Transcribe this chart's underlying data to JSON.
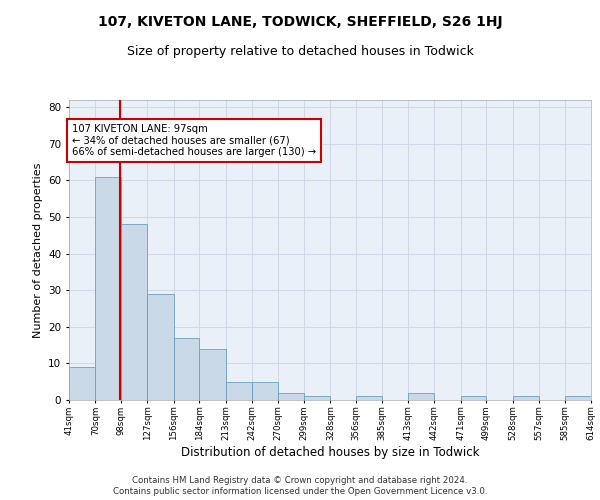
{
  "title": "107, KIVETON LANE, TODWICK, SHEFFIELD, S26 1HJ",
  "subtitle": "Size of property relative to detached houses in Todwick",
  "xlabel": "Distribution of detached houses by size in Todwick",
  "ylabel": "Number of detached properties",
  "bar_values": [
    9,
    61,
    48,
    29,
    17,
    14,
    5,
    5,
    2,
    1,
    0,
    1,
    0,
    2,
    0,
    1,
    0,
    1,
    0,
    1
  ],
  "bin_edges": [
    41,
    70,
    98,
    127,
    156,
    184,
    213,
    242,
    270,
    299,
    328,
    356,
    385,
    413,
    442,
    471,
    499,
    528,
    557,
    585,
    614
  ],
  "x_tick_labels": [
    "41sqm",
    "70sqm",
    "98sqm",
    "127sqm",
    "156sqm",
    "184sqm",
    "213sqm",
    "242sqm",
    "270sqm",
    "299sqm",
    "328sqm",
    "356sqm",
    "385sqm",
    "413sqm",
    "442sqm",
    "471sqm",
    "499sqm",
    "528sqm",
    "557sqm",
    "585sqm",
    "614sqm"
  ],
  "bar_color": "#c9d9e8",
  "bar_edge_color": "#6a9fc0",
  "property_line_x": 97,
  "property_line_color": "#cc0000",
  "annotation_text": "107 KIVETON LANE: 97sqm\n← 34% of detached houses are smaller (67)\n66% of semi-detached houses are larger (130) →",
  "annotation_box_color": "#ffffff",
  "annotation_box_edge_color": "#cc0000",
  "ylim": [
    0,
    82
  ],
  "yticks": [
    0,
    10,
    20,
    30,
    40,
    50,
    60,
    70,
    80
  ],
  "grid_color": "#d0d8e8",
  "background_color": "#eaf0f8",
  "footer_line1": "Contains HM Land Registry data © Crown copyright and database right 2024.",
  "footer_line2": "Contains public sector information licensed under the Open Government Licence v3.0.",
  "title_fontsize": 10,
  "subtitle_fontsize": 9,
  "xlabel_fontsize": 8.5,
  "ylabel_fontsize": 8
}
